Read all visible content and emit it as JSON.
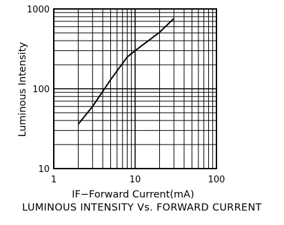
{
  "chart_data": {
    "type": "line",
    "title": "",
    "caption": "LUMINOUS  INTENSITY  Vs.  FORWARD  CURRENT",
    "xlabel": "IF−Forward  Current(mA)",
    "ylabel": "Luminous  Intensity",
    "xscale": "log",
    "yscale": "log",
    "xlim": [
      1,
      100
    ],
    "ylim": [
      10,
      1000
    ],
    "x_ticks": [
      "1",
      "10",
      "100"
    ],
    "y_ticks": [
      "10",
      "100",
      "1000"
    ],
    "grid": true,
    "series": [
      {
        "x": [
          2,
          3,
          5,
          8,
          10,
          20,
          30
        ],
        "y": [
          36,
          60,
          130,
          250,
          300,
          510,
          760
        ]
      }
    ]
  }
}
